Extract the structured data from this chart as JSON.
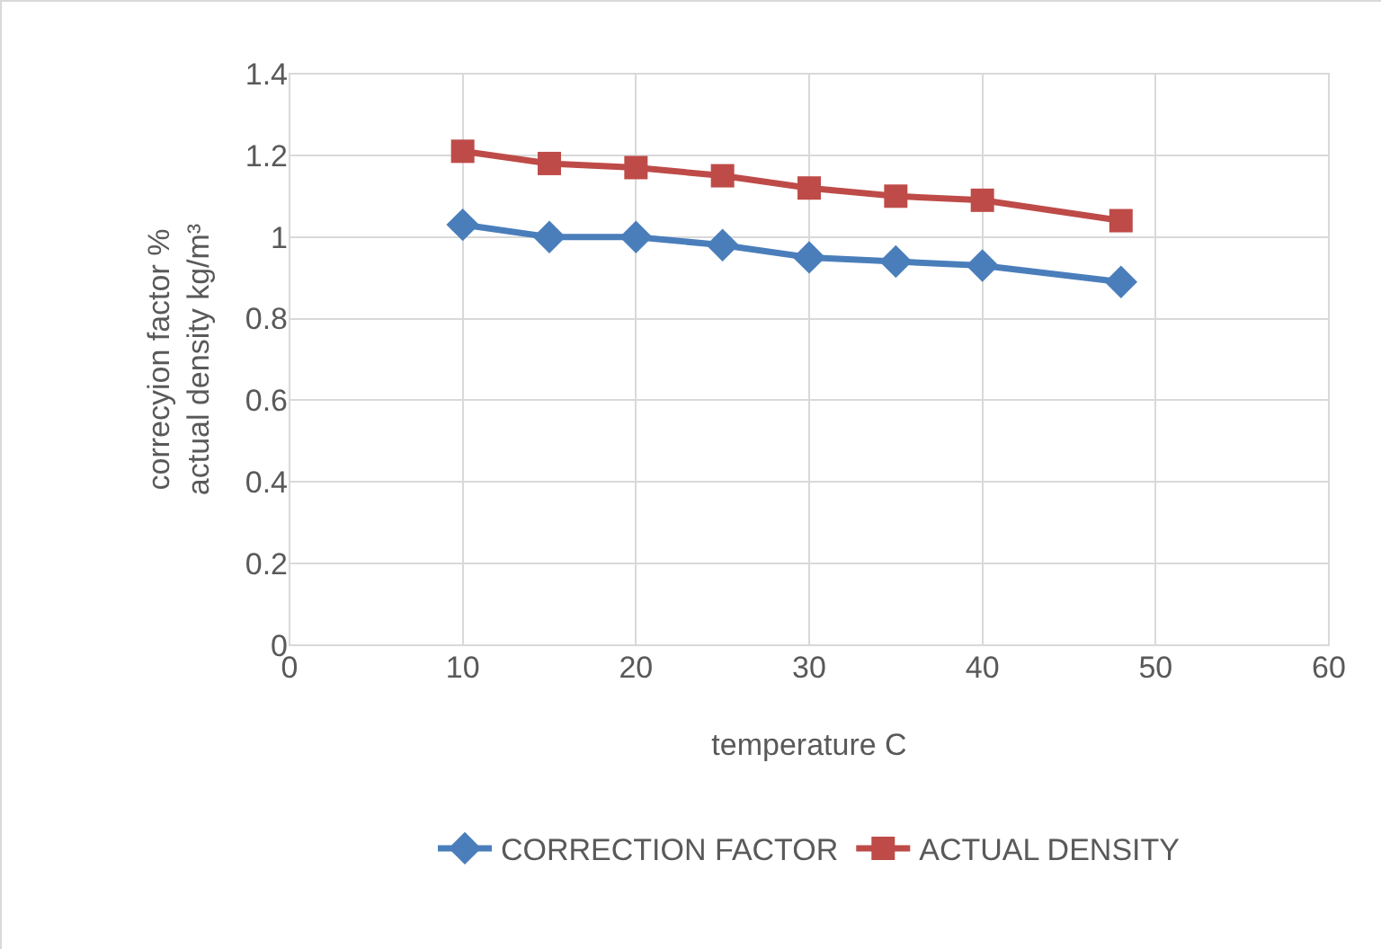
{
  "chart_data": {
    "type": "line",
    "xlabel": "temperature C",
    "ylabel": "correcyion factor %\nactual density kg/m³",
    "x": [
      10,
      15,
      20,
      25,
      30,
      35,
      40,
      48
    ],
    "series": [
      {
        "name": "CORRECTION FACTOR",
        "color": "#4a7ebb",
        "marker": "diamond",
        "values": [
          1.03,
          1.0,
          1.0,
          0.98,
          0.95,
          0.94,
          0.93,
          0.89
        ]
      },
      {
        "name": "ACTUAL DENSITY",
        "color": "#be4b48",
        "marker": "square",
        "values": [
          1.21,
          1.18,
          1.17,
          1.15,
          1.12,
          1.1,
          1.09,
          1.04
        ]
      }
    ],
    "xlim": [
      0,
      60
    ],
    "xticks": [
      0,
      10,
      20,
      30,
      40,
      50,
      60
    ],
    "ylim": [
      0,
      1.4
    ],
    "yticks": [
      0,
      0.2,
      0.4,
      0.6,
      0.8,
      1,
      1.2,
      1.4
    ],
    "grid": true,
    "legend": "bottom",
    "line_style": "solid"
  }
}
